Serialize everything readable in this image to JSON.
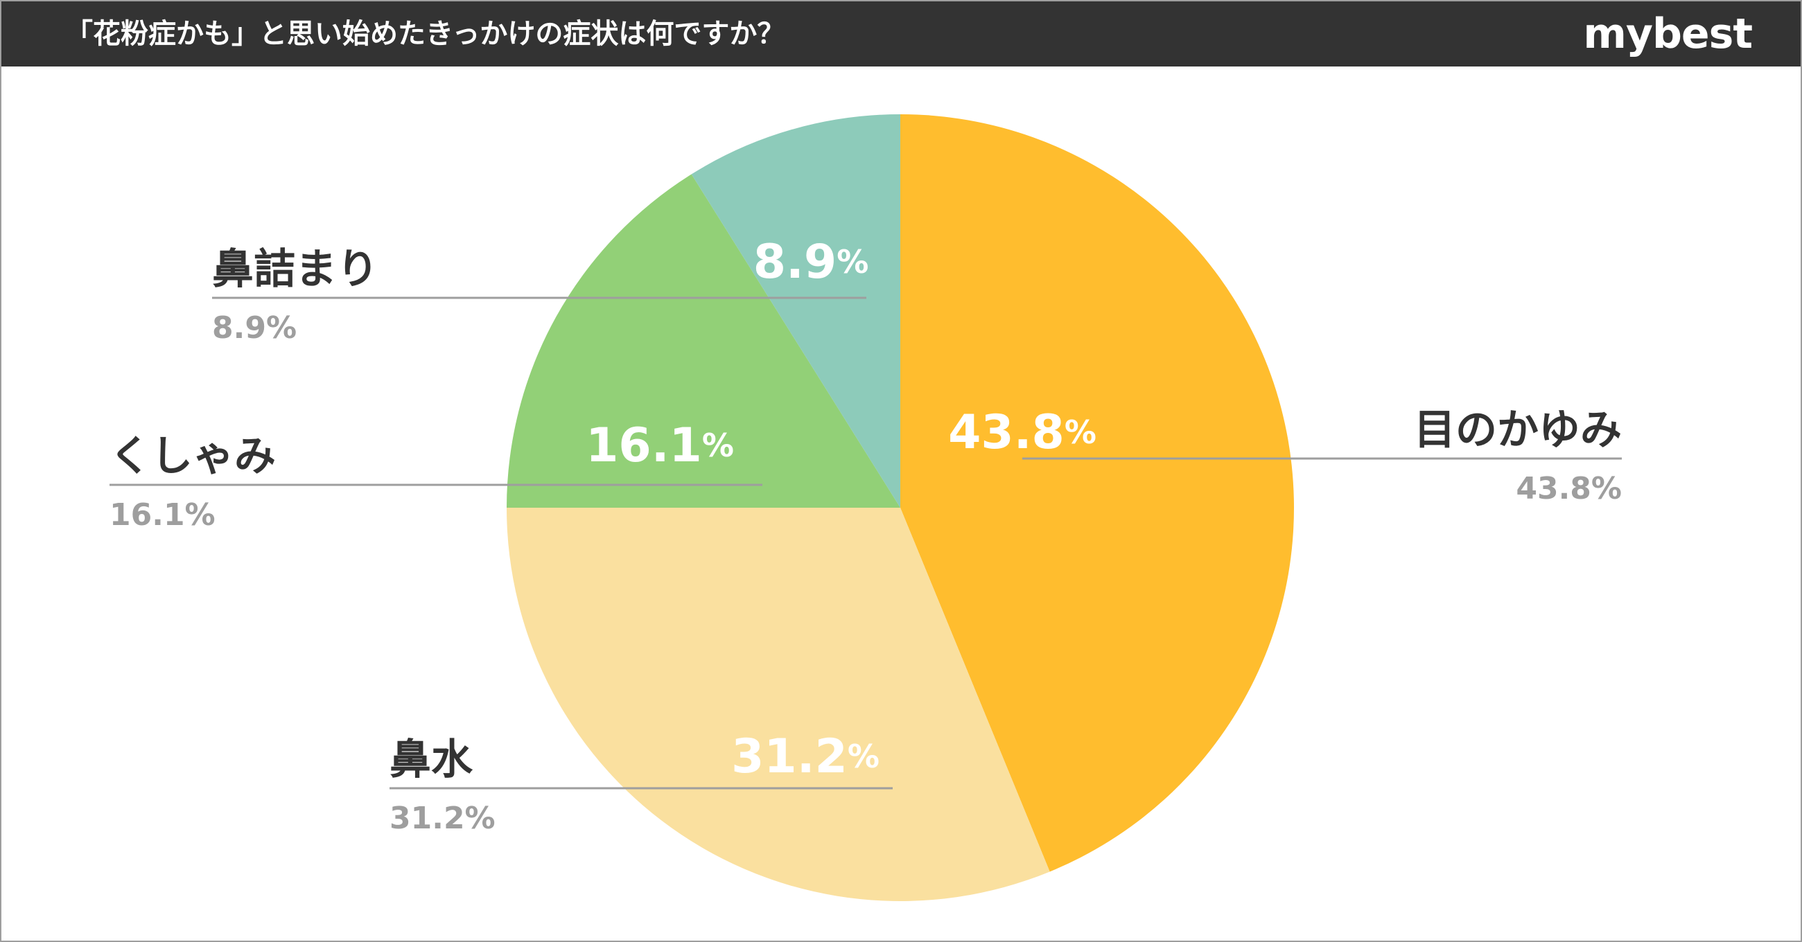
{
  "header": {
    "title": "「花粉症かも」と思い始めたきっかけの症状は何ですか？",
    "brand": "mybest"
  },
  "colors": {
    "header_bg": "#333333",
    "leader_line": "#9e9e9e"
  },
  "chart_data": {
    "type": "pie",
    "title": "「花粉症かも」と思い始めたきっかけの症状は何ですか？",
    "slices": [
      {
        "label": "目のかゆみ",
        "value": 43.8,
        "display": "43.8",
        "legend_text": "43.8%",
        "color": "#FFBD2E"
      },
      {
        "label": "鼻水",
        "value": 31.2,
        "display": "31.2",
        "legend_text": "31.2%",
        "color": "#FAE09F"
      },
      {
        "label": "くしゃみ",
        "value": 16.1,
        "display": "16.1",
        "legend_text": "16.1%",
        "color": "#92D077"
      },
      {
        "label": "鼻詰まり",
        "value": 8.9,
        "display": "8.9",
        "legend_text": "8.9%",
        "color": "#8DCBBA"
      }
    ],
    "percent_sign": "%",
    "start_angle": "12 o'clock",
    "direction": "clockwise"
  }
}
